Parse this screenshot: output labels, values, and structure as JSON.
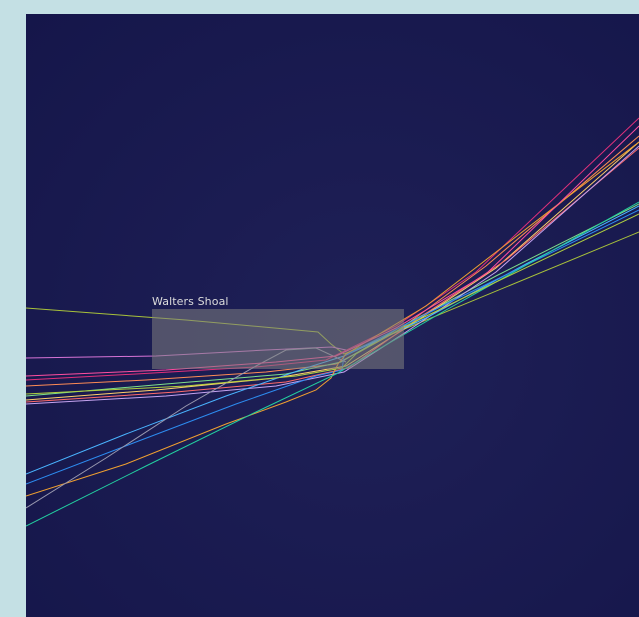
{
  "map": {
    "label": "Walters Shoal",
    "background_color": "#1b1c52",
    "frame_color": "#c4e0e4",
    "track_colors": [
      "#a8c23a",
      "#d774d7",
      "#e0307a",
      "#ff8c55",
      "#7ee08a",
      "#ffd06a",
      "#ff6b6b",
      "#c5a3f0",
      "#4ab4ff",
      "#2d8cf0",
      "#f0a030",
      "#9a9ab0",
      "#23d0a0",
      "#b0d040",
      "#ff4fa0"
    ]
  }
}
